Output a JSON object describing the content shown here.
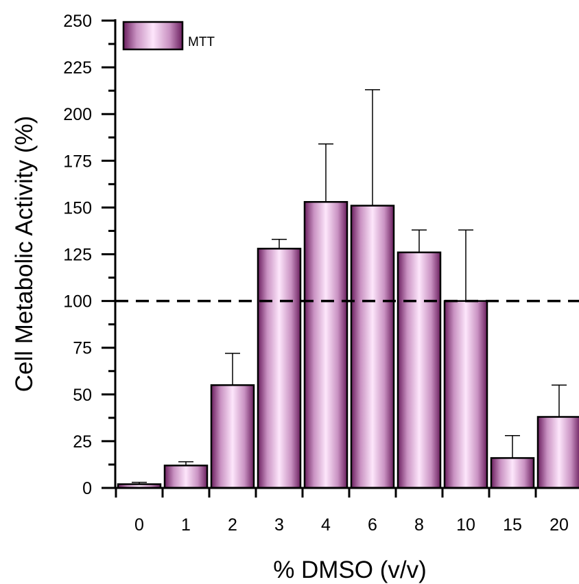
{
  "chart_data": {
    "type": "bar",
    "xlabel": "% DMSO (v/v)",
    "ylabel": "Cell Metabolic Activity (%)",
    "categories": [
      "0",
      "1",
      "2",
      "3",
      "4",
      "6",
      "8",
      "10",
      "15",
      "20"
    ],
    "series": [
      {
        "name": "MTT",
        "values": [
          2,
          12,
          55,
          128,
          153,
          151,
          126,
          100,
          16,
          38
        ],
        "error_upper": [
          3,
          14,
          72,
          133,
          184,
          213,
          138,
          138,
          28,
          55
        ]
      }
    ],
    "ylim": [
      0,
      250
    ],
    "yticks": [
      "0",
      "25",
      "50",
      "75",
      "100",
      "125",
      "150",
      "175",
      "200",
      "225",
      "250"
    ],
    "reference_line": {
      "y": 100,
      "style": "dashed"
    },
    "legend_position": "top-left",
    "grid": false,
    "colors": {
      "bar_dark": "#6b1f5f",
      "bar_light": "#fde6fb",
      "axis": "#000000"
    }
  }
}
